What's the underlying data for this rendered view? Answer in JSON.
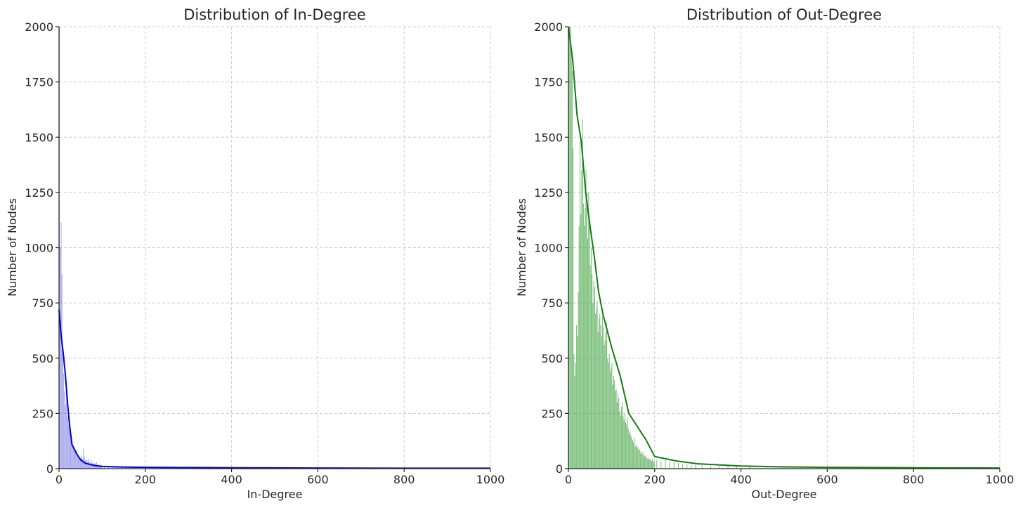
{
  "chart_data": [
    {
      "type": "bar",
      "title": "Distribution of In-Degree",
      "xlabel": "In-Degree",
      "ylabel": "Number of Nodes",
      "xlim": [
        0,
        1000
      ],
      "ylim": [
        0,
        2000
      ],
      "xticks": [
        "0",
        "200",
        "400",
        "600",
        "800",
        "1000"
      ],
      "yticks": [
        "0",
        "250",
        "500",
        "750",
        "1000",
        "1250",
        "1500",
        "1750",
        "2000"
      ],
      "grid": true,
      "bar_color": "#0000cc",
      "bar_opacity": 0.35,
      "line_color": "#0000cc",
      "bin_width": 2,
      "bins": [
        [
          1,
          2000
        ],
        [
          3,
          1000
        ],
        [
          5,
          1115
        ],
        [
          7,
          880
        ],
        [
          9,
          520
        ],
        [
          11,
          430
        ],
        [
          13,
          350
        ],
        [
          15,
          290
        ],
        [
          17,
          360
        ],
        [
          19,
          240
        ],
        [
          21,
          230
        ],
        [
          23,
          200
        ],
        [
          25,
          190
        ],
        [
          27,
          150
        ],
        [
          29,
          130
        ],
        [
          31,
          120
        ],
        [
          33,
          100
        ],
        [
          35,
          90
        ],
        [
          37,
          80
        ],
        [
          39,
          70
        ],
        [
          41,
          85
        ],
        [
          43,
          60
        ],
        [
          45,
          55
        ],
        [
          47,
          50
        ],
        [
          49,
          45
        ],
        [
          51,
          50
        ],
        [
          53,
          60
        ],
        [
          55,
          45
        ],
        [
          57,
          90
        ],
        [
          59,
          55
        ],
        [
          61,
          40
        ],
        [
          63,
          35
        ],
        [
          65,
          40
        ],
        [
          67,
          30
        ],
        [
          69,
          45
        ],
        [
          71,
          30
        ],
        [
          73,
          25
        ],
        [
          75,
          40
        ],
        [
          77,
          25
        ],
        [
          79,
          30
        ],
        [
          81,
          20
        ],
        [
          83,
          25
        ],
        [
          85,
          20
        ],
        [
          87,
          30
        ],
        [
          89,
          15
        ],
        [
          91,
          20
        ],
        [
          93,
          15
        ],
        [
          95,
          18
        ],
        [
          97,
          14
        ],
        [
          99,
          16
        ],
        [
          105,
          14
        ],
        [
          115,
          12
        ],
        [
          125,
          12
        ],
        [
          135,
          10
        ],
        [
          145,
          10
        ],
        [
          155,
          9
        ],
        [
          165,
          8
        ],
        [
          175,
          10
        ],
        [
          185,
          8
        ],
        [
          195,
          9
        ],
        [
          210,
          8
        ],
        [
          230,
          7
        ],
        [
          250,
          8
        ],
        [
          270,
          6
        ],
        [
          290,
          7
        ],
        [
          310,
          6
        ],
        [
          330,
          5
        ],
        [
          350,
          6
        ],
        [
          370,
          5
        ],
        [
          390,
          6
        ],
        [
          420,
          5
        ],
        [
          460,
          5
        ],
        [
          500,
          4
        ],
        [
          540,
          4
        ],
        [
          580,
          4
        ],
        [
          620,
          3
        ],
        [
          660,
          3
        ],
        [
          700,
          3
        ],
        [
          760,
          2
        ],
        [
          840,
          2
        ],
        [
          920,
          2
        ],
        [
          990,
          2
        ]
      ],
      "line": {
        "x": [
          0,
          5,
          10,
          15,
          20,
          25,
          30,
          40,
          50,
          60,
          80,
          100,
          150,
          200,
          300,
          400,
          600,
          800,
          1000
        ],
        "y": [
          720,
          600,
          520,
          420,
          290,
          190,
          110,
          70,
          40,
          25,
          15,
          10,
          7,
          6,
          5,
          4,
          3,
          2,
          2
        ]
      }
    },
    {
      "type": "bar",
      "title": "Distribution of Out-Degree",
      "xlabel": "Out-Degree",
      "ylabel": "Number of Nodes",
      "xlim": [
        0,
        1000
      ],
      "ylim": [
        0,
        2000
      ],
      "xticks": [
        "0",
        "200",
        "400",
        "600",
        "800",
        "1000"
      ],
      "yticks": [
        "0",
        "250",
        "500",
        "750",
        "1000",
        "1250",
        "1500",
        "1750",
        "2000"
      ],
      "grid": true,
      "bar_color": "#4aa64a",
      "bar_opacity": 0.72,
      "line_color": "#137c13",
      "bin_width": 2,
      "bins": [
        [
          1,
          2000
        ],
        [
          3,
          2000
        ],
        [
          5,
          2000
        ],
        [
          7,
          1900
        ],
        [
          9,
          1800
        ],
        [
          11,
          1450
        ],
        [
          13,
          520
        ],
        [
          15,
          420
        ],
        [
          17,
          480
        ],
        [
          19,
          650
        ],
        [
          21,
          600
        ],
        [
          23,
          800
        ],
        [
          25,
          1100
        ],
        [
          27,
          1480
        ],
        [
          29,
          1150
        ],
        [
          31,
          1350
        ],
        [
          33,
          1580
        ],
        [
          35,
          1200
        ],
        [
          37,
          1100
        ],
        [
          39,
          1180
        ],
        [
          41,
          1350
        ],
        [
          43,
          1250
        ],
        [
          45,
          1040
        ],
        [
          47,
          1250
        ],
        [
          49,
          1100
        ],
        [
          51,
          920
        ],
        [
          53,
          1000
        ],
        [
          55,
          880
        ],
        [
          57,
          750
        ],
        [
          59,
          850
        ],
        [
          61,
          820
        ],
        [
          63,
          700
        ],
        [
          65,
          730
        ],
        [
          67,
          760
        ],
        [
          69,
          620
        ],
        [
          71,
          680
        ],
        [
          73,
          700
        ],
        [
          75,
          650
        ],
        [
          77,
          600
        ],
        [
          79,
          690
        ],
        [
          81,
          640
        ],
        [
          83,
          560
        ],
        [
          85,
          580
        ],
        [
          87,
          620
        ],
        [
          89,
          660
        ],
        [
          91,
          500
        ],
        [
          93,
          480
        ],
        [
          95,
          520
        ],
        [
          97,
          440
        ],
        [
          99,
          460
        ],
        [
          101,
          480
        ],
        [
          103,
          380
        ],
        [
          105,
          420
        ],
        [
          107,
          400
        ],
        [
          109,
          350
        ],
        [
          111,
          360
        ],
        [
          113,
          300
        ],
        [
          115,
          340
        ],
        [
          117,
          320
        ],
        [
          119,
          260
        ],
        [
          121,
          240
        ],
        [
          123,
          280
        ],
        [
          125,
          300
        ],
        [
          127,
          240
        ],
        [
          129,
          220
        ],
        [
          131,
          250
        ],
        [
          133,
          210
        ],
        [
          135,
          200
        ],
        [
          137,
          230
        ],
        [
          139,
          180
        ],
        [
          141,
          160
        ],
        [
          143,
          170
        ],
        [
          145,
          150
        ],
        [
          147,
          140
        ],
        [
          149,
          130
        ],
        [
          151,
          120
        ],
        [
          153,
          140
        ],
        [
          155,
          100
        ],
        [
          157,
          110
        ],
        [
          159,
          95
        ],
        [
          161,
          100
        ],
        [
          163,
          85
        ],
        [
          165,
          90
        ],
        [
          167,
          70
        ],
        [
          169,
          80
        ],
        [
          171,
          65
        ],
        [
          173,
          75
        ],
        [
          175,
          60
        ],
        [
          177,
          55
        ],
        [
          179,
          60
        ],
        [
          181,
          50
        ],
        [
          183,
          45
        ],
        [
          185,
          50
        ],
        [
          187,
          40
        ],
        [
          189,
          45
        ],
        [
          191,
          40
        ],
        [
          193,
          35
        ],
        [
          195,
          45
        ],
        [
          197,
          30
        ],
        [
          199,
          35
        ],
        [
          205,
          40
        ],
        [
          215,
          35
        ],
        [
          225,
          38
        ],
        [
          235,
          30
        ],
        [
          245,
          28
        ],
        [
          255,
          25
        ],
        [
          265,
          22
        ],
        [
          275,
          20
        ],
        [
          285,
          18
        ],
        [
          295,
          16
        ],
        [
          310,
          15
        ],
        [
          330,
          14
        ],
        [
          350,
          12
        ],
        [
          370,
          12
        ],
        [
          390,
          10
        ],
        [
          420,
          9
        ],
        [
          460,
          8
        ],
        [
          500,
          7
        ],
        [
          540,
          6
        ],
        [
          580,
          6
        ],
        [
          620,
          5
        ],
        [
          660,
          5
        ],
        [
          700,
          4
        ],
        [
          760,
          4
        ],
        [
          820,
          3
        ],
        [
          880,
          3
        ],
        [
          940,
          3
        ],
        [
          990,
          3
        ]
      ],
      "line": {
        "x": [
          0,
          10,
          20,
          30,
          40,
          50,
          60,
          70,
          80,
          100,
          120,
          140,
          160,
          180,
          200,
          250,
          300,
          400,
          500,
          600,
          800,
          1000
        ],
        "y": [
          2000,
          1850,
          1600,
          1480,
          1250,
          1100,
          960,
          800,
          700,
          550,
          420,
          250,
          190,
          130,
          55,
          35,
          22,
          12,
          8,
          6,
          4,
          3
        ]
      }
    }
  ]
}
